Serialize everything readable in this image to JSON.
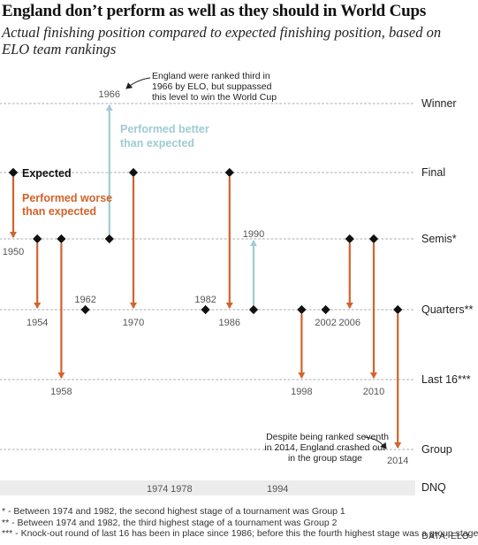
{
  "title": "England don’t perform as well as they should in World Cups",
  "subtitle": "Actual finishing position compared to expected finishing position, based on ELO team rankings",
  "chart_data": {
    "type": "arrow-dot",
    "y_levels": [
      "Winner",
      "Final",
      "Semis*",
      "Quarters**",
      "Last 16***",
      "Group",
      "DNQ"
    ],
    "series": [
      {
        "year": "1950",
        "expected": "Final",
        "actual": "Semis*"
      },
      {
        "year": "1954",
        "expected": "Semis*",
        "actual": "Quarters**"
      },
      {
        "year": "1958",
        "expected": "Semis*",
        "actual": "Last 16***"
      },
      {
        "year": "1962",
        "expected": "Quarters**",
        "actual": "Quarters**"
      },
      {
        "year": "1966",
        "expected": "Semis*",
        "actual": "Winner"
      },
      {
        "year": "1970",
        "expected": "Final",
        "actual": "Quarters**"
      },
      {
        "year": "1974",
        "expected": null,
        "actual": "DNQ"
      },
      {
        "year": "1978",
        "expected": null,
        "actual": "DNQ"
      },
      {
        "year": "1982",
        "expected": "Quarters**",
        "actual": "Quarters**"
      },
      {
        "year": "1986",
        "expected": "Final",
        "actual": "Quarters**"
      },
      {
        "year": "1990",
        "expected": "Quarters**",
        "actual": "Semis*"
      },
      {
        "year": "1994",
        "expected": null,
        "actual": "DNQ"
      },
      {
        "year": "1998",
        "expected": "Quarters**",
        "actual": "Last 16***"
      },
      {
        "year": "2002",
        "expected": "Quarters**",
        "actual": "Quarters**"
      },
      {
        "year": "2006",
        "expected": "Semis*",
        "actual": "Quarters**"
      },
      {
        "year": "2010",
        "expected": "Semis*",
        "actual": "Last 16***"
      },
      {
        "year": "2014",
        "expected": "Quarters**",
        "actual": "Group"
      }
    ],
    "legend": {
      "expected": "Expected",
      "worse": "Performed worse than expected",
      "better": "Performed better than expected"
    },
    "annotations": {
      "1966": "England were ranked third in 1966 by ELO, but suppassed this level to win the World Cup",
      "2014": "Despite being ranked seventh in 2014, England crashed out in the group stage"
    },
    "colors": {
      "worse": "#d4622a",
      "better": "#9fcbd4",
      "dot": "#111111",
      "grid": "#c8c8c8",
      "dnq_band": "#ececec"
    }
  },
  "footnotes": [
    "* - Between 1974 and 1982, the second highest stage of a tournament was Group 1",
    "** - Between 1974 and 1982, the third highest stage of a tournament was Group 2",
    "*** - Knock-out round of last 16 has been in place since 1986; before this the fourth highest stage was a group stage"
  ],
  "source": "DATA: ELO"
}
